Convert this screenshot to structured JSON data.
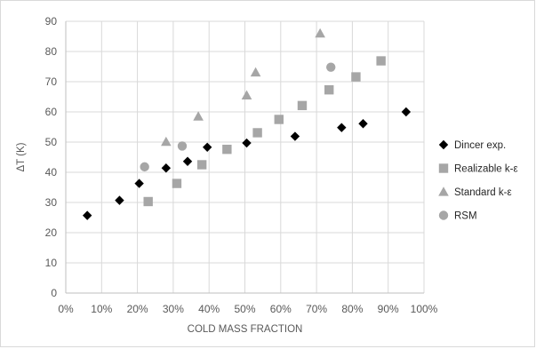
{
  "chart_data": {
    "type": "scatter",
    "xlabel": "COLD MASS FRACTION",
    "ylabel": "ΔT (K)",
    "xlim": [
      0,
      1
    ],
    "ylim": [
      0,
      90
    ],
    "x_ticks": [
      "0%",
      "10%",
      "20%",
      "30%",
      "40%",
      "50%",
      "60%",
      "70%",
      "80%",
      "90%",
      "100%"
    ],
    "y_ticks": [
      "0",
      "10",
      "20",
      "30",
      "40",
      "50",
      "60",
      "70",
      "80",
      "90"
    ],
    "grid": true,
    "legend_position": "right",
    "series": [
      {
        "name": "Dincer exp.",
        "marker": "diamond",
        "color": "#000000",
        "points": [
          [
            0.06,
            25.7
          ],
          [
            0.15,
            30.7
          ],
          [
            0.205,
            36.3
          ],
          [
            0.28,
            41.4
          ],
          [
            0.34,
            43.6
          ],
          [
            0.395,
            48.3
          ],
          [
            0.505,
            49.7
          ],
          [
            0.64,
            51.9
          ],
          [
            0.77,
            54.8
          ],
          [
            0.83,
            56.1
          ],
          [
            0.95,
            60.0
          ]
        ]
      },
      {
        "name": "Realizable k-ε",
        "marker": "square",
        "color": "#a6a6a6",
        "points": [
          [
            0.23,
            30.3
          ],
          [
            0.31,
            36.3
          ],
          [
            0.38,
            42.5
          ],
          [
            0.45,
            47.6
          ],
          [
            0.535,
            53.1
          ],
          [
            0.595,
            57.5
          ],
          [
            0.66,
            62.1
          ],
          [
            0.735,
            67.3
          ],
          [
            0.81,
            71.6
          ],
          [
            0.88,
            76.9
          ]
        ]
      },
      {
        "name": "Standard k-ε",
        "marker": "triangle",
        "color": "#a6a6a6",
        "points": [
          [
            0.28,
            50.1
          ],
          [
            0.37,
            58.5
          ],
          [
            0.505,
            65.5
          ],
          [
            0.53,
            73.1
          ],
          [
            0.71,
            86.0
          ]
        ]
      },
      {
        "name": "RSM",
        "marker": "circle",
        "color": "#a6a6a6",
        "points": [
          [
            0.22,
            41.8
          ],
          [
            0.325,
            48.7
          ],
          [
            0.74,
            74.8
          ]
        ]
      }
    ]
  }
}
